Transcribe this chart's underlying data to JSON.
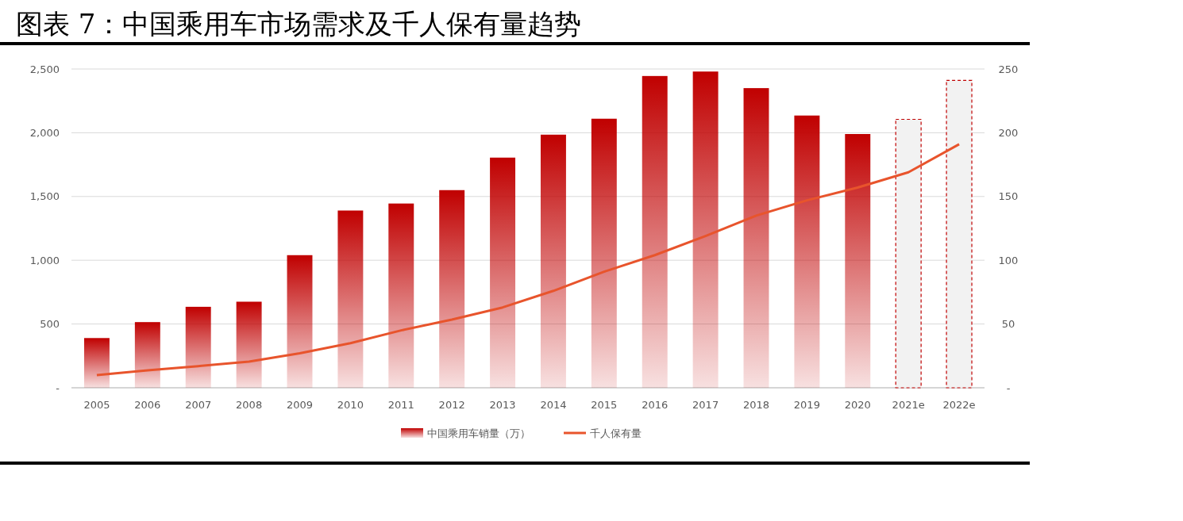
{
  "chart_data": {
    "type": "bar",
    "title": "图表 7：中国乘用车市场需求及千人保有量趋势",
    "categories": [
      "2005",
      "2006",
      "2007",
      "2008",
      "2009",
      "2010",
      "2011",
      "2012",
      "2013",
      "2014",
      "2015",
      "2016",
      "2017",
      "2018",
      "2019",
      "2020",
      "2021e",
      "2022e"
    ],
    "series": [
      {
        "name": "中国乘用车销量（万）",
        "color": "#c00000",
        "colors": [
          "#c00000",
          "#c00000",
          "#c00000",
          "#c00000",
          "#c00000",
          "#c00000",
          "#c00000",
          "#c00000",
          "#c00000",
          "#c00000",
          "#c00000",
          "#c00000",
          "#c00000",
          "#c00000",
          "#c00000",
          "#c00000",
          "#f2f2f2",
          "#f2f2f2"
        ],
        "values": [
          390,
          515,
          635,
          675,
          1040,
          1390,
          1445,
          1550,
          1805,
          1985,
          2110,
          2445,
          2480,
          2350,
          2135,
          1990,
          2105,
          2410
        ]
      },
      {
        "name": "千人保有量",
        "type": "line",
        "axis": "y2",
        "color": "#e8542c",
        "values": [
          10,
          13.7,
          17,
          20.5,
          27,
          35,
          45,
          53.5,
          63,
          76,
          91,
          104,
          119,
          135,
          147,
          157,
          169,
          191
        ]
      }
    ],
    "ylim": [
      0,
      2500
    ],
    "yticks": [
      {
        "value": 0,
        "label": "-"
      },
      {
        "value": 500,
        "label": "500"
      },
      {
        "value": 1000,
        "label": "1,000"
      },
      {
        "value": 1500,
        "label": "1,500"
      },
      {
        "value": 2000,
        "label": "2,000"
      },
      {
        "value": 2500,
        "label": "2,500"
      }
    ],
    "y2lim": [
      0,
      250
    ],
    "y2ticks": [
      {
        "value": 0,
        "label": "-"
      },
      50,
      100,
      150,
      200,
      250
    ],
    "grid": "y",
    "legend": "bottom",
    "marker": "none",
    "line_style": "solid"
  }
}
